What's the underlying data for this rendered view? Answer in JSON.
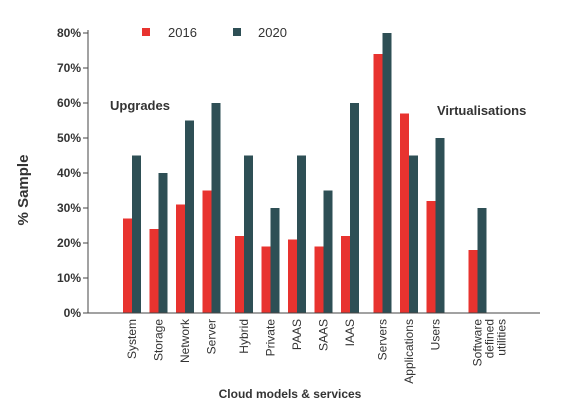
{
  "chart_data": {
    "type": "bar",
    "xlabel": "Cloud models & services",
    "ylabel": "% Sample",
    "ylim": [
      0,
      80
    ],
    "yticks": [
      "0%",
      "10%",
      "20%",
      "30%",
      "40%",
      "50%",
      "60%",
      "70%",
      "80%"
    ],
    "categories": [
      "System",
      "Storage",
      "Network",
      "Server",
      "Hybrid",
      "Private",
      "PAAS",
      "SAAS",
      "IAAS",
      "Servers",
      "Applications",
      "Users",
      "Software defined utilities"
    ],
    "series": [
      {
        "name": "2016",
        "color": "#e8332f",
        "values": [
          27,
          24,
          31,
          35,
          22,
          19,
          21,
          19,
          22,
          74,
          57,
          32,
          18
        ]
      },
      {
        "name": "2020",
        "color": "#2e4f55",
        "values": [
          45,
          40,
          55,
          60,
          45,
          30,
          45,
          35,
          60,
          80,
          45,
          50,
          30
        ]
      }
    ],
    "annotations": [
      "Upgrades",
      "Virtualisations"
    ],
    "legend_position": "top-center",
    "grid": false
  }
}
